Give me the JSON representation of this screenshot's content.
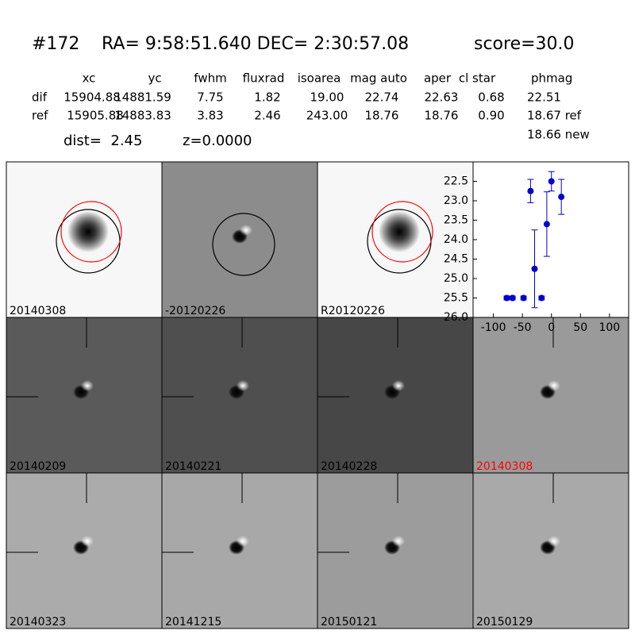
{
  "header": {
    "id": "#172",
    "coords": "RA= 9:58:51.640 DEC= 2:30:57.08",
    "score": "score=30.0"
  },
  "table": {
    "columns": [
      "xc",
      "yc",
      "fwhm",
      "fluxrad",
      "isoarea",
      "mag auto",
      "aper",
      "cl star",
      "phmag"
    ],
    "rows": [
      [
        "dif",
        "15904.88",
        "14881.59",
        "7.75",
        "1.82",
        "19.00",
        "22.74",
        "22.63",
        "0.68",
        "22.51"
      ],
      [
        "ref",
        "15905.88",
        "14883.83",
        "3.83",
        "2.46",
        "243.00",
        "18.76",
        "18.76",
        "0.90",
        "18.67 ref"
      ]
    ],
    "note": "18.66 new"
  },
  "summary": {
    "dist": "dist=  2.45",
    "z": "z=0.0000"
  },
  "panels": [
    {
      "label": "20140308",
      "label_color": "#000000"
    },
    {
      "label": "-20120226",
      "label_color": "#000000"
    },
    {
      "label": "R20120226",
      "label_color": "#000000"
    },
    {
      "label": "20140209",
      "label_color": "#000000"
    },
    {
      "label": "20140221",
      "label_color": "#000000"
    },
    {
      "label": "20140228",
      "label_color": "#000000"
    },
    {
      "label": "20140308",
      "label_color": "#ff0000"
    },
    {
      "label": "20140323",
      "label_color": "#000000"
    },
    {
      "label": "20141215",
      "label_color": "#000000"
    },
    {
      "label": "20150121",
      "label_color": "#000000"
    },
    {
      "label": "20150129",
      "label_color": "#000000"
    }
  ],
  "lightcurve": {
    "type": "errorbar",
    "color": "#0000cc",
    "x": [
      -77,
      -67,
      -48,
      -36,
      -29,
      -17,
      -8,
      0,
      17
    ],
    "values": [
      25.5,
      25.5,
      25.5,
      22.75,
      24.75,
      25.5,
      23.6,
      22.5,
      22.9
    ],
    "errors": [
      0.05,
      0.05,
      0.05,
      0.3,
      1.0,
      0.05,
      0.83,
      0.25,
      0.45
    ],
    "xlim": [
      -135,
      133
    ],
    "ylim": [
      22,
      26
    ],
    "y_inverted": true,
    "xticks": [
      -100,
      -50,
      0,
      50,
      100
    ],
    "yticks": [
      {
        "value": 22.5,
        "label": "22.5"
      },
      {
        "value": 23,
        "label": "23.0"
      },
      {
        "value": 23.5,
        "label": "23.5"
      },
      {
        "value": 24,
        "label": "24.0"
      },
      {
        "value": 24.5,
        "label": "24.5"
      },
      {
        "value": 25,
        "label": "25.0"
      },
      {
        "value": 25.5,
        "label": "25.5"
      },
      {
        "value": 26,
        "label": "26.0"
      }
    ]
  }
}
